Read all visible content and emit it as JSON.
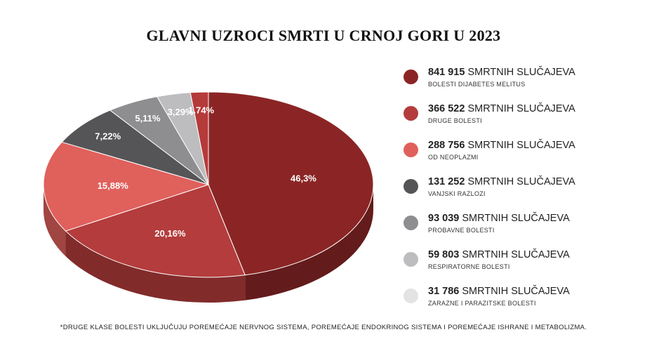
{
  "chart_data": {
    "type": "pie",
    "title": "GLAVNI UZROCI SMRTI U CRNOJ GORI U 2023",
    "unit": "SMRTNIH SLUČAJEVA",
    "slices": [
      {
        "label": "BOLESTI DIJABETES MELITUS",
        "count": "841 915",
        "value": 46.3,
        "pct_label": "46,3%",
        "color": "#8b2525"
      },
      {
        "label": "DRUGE BOLESTI",
        "count": "366 522",
        "value": 20.16,
        "pct_label": "20,16%",
        "color": "#b43c3c"
      },
      {
        "label": "OD NEOPLAZMI",
        "count": "288 756",
        "value": 15.88,
        "pct_label": "15,88%",
        "color": "#e0605c"
      },
      {
        "label": "VANJSKI RAZLOZI",
        "count": "131 252",
        "value": 7.22,
        "pct_label": "7,22%",
        "color": "#555557"
      },
      {
        "label": "PROBAVNE BOLESTI",
        "count": "93 039",
        "value": 5.11,
        "pct_label": "5,11%",
        "color": "#8e8e90"
      },
      {
        "label": "RESPIRATORNE BOLESTI",
        "count": "59 803",
        "value": 3.29,
        "pct_label": "3,29%",
        "color": "#bdbdbf"
      },
      {
        "label": "ZARAZNE I PARAZITSKE BOLESTI",
        "count": "31 786",
        "value": 1.74,
        "pct_label": "1.74%",
        "color": "#b53a3a"
      }
    ],
    "legend_position": "right"
  },
  "legend_dot_colors": [
    "#8b2525",
    "#b43c3c",
    "#e0605c",
    "#555557",
    "#8e8e90",
    "#bdbdbf",
    "#e3e3e3"
  ],
  "footnote": "*DRUGE KLASE BOLESTI UKLJUČUJU POREMEĆAJE NERVNOG SISTEMA, POREMEĆAJE ENDOKRINOG SISTEMA I POREMEĆAJE ISHRANE I METABOLIZMA."
}
